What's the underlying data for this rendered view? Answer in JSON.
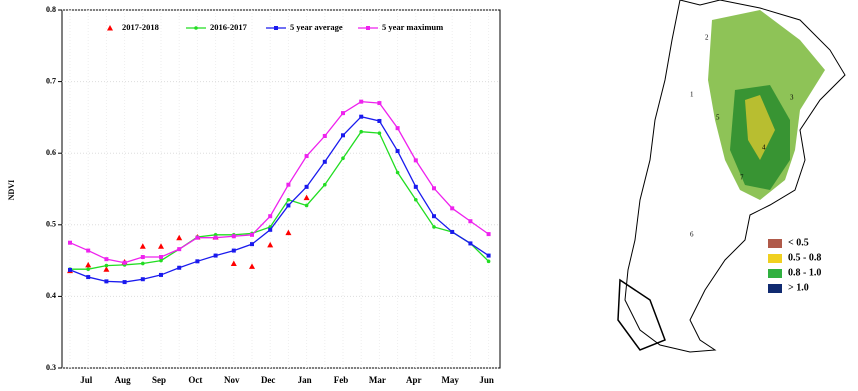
{
  "chart_data": {
    "type": "line",
    "y_label": "NDVI",
    "categories": [
      null,
      "Jul",
      null,
      "Aug",
      null,
      "Sep",
      null,
      "Oct",
      null,
      "Nov",
      null,
      "Dec",
      null,
      "Jan",
      null,
      "Feb",
      null,
      "Mar",
      null,
      "Apr",
      null,
      "May",
      null,
      "Jun"
    ],
    "ylim": [
      0.3,
      0.8
    ],
    "yticks": [
      0.3,
      0.4,
      0.5,
      0.6,
      0.7,
      0.8
    ],
    "grid": true,
    "series": [
      {
        "name": "2017-2018",
        "color": "#ff0000",
        "marker": "triangle",
        "line": false,
        "values": [
          0.436,
          0.444,
          0.438,
          0.448,
          0.47,
          0.47,
          0.482,
          0.483,
          0.483,
          0.446,
          0.442,
          0.472,
          0.489,
          0.538,
          null,
          null,
          null,
          null,
          null,
          null,
          null,
          null,
          null,
          null
        ]
      },
      {
        "name": "2016-2017",
        "color": "#22dd22",
        "marker": "circle",
        "line": true,
        "values": [
          0.438,
          0.438,
          0.443,
          0.444,
          0.446,
          0.45,
          0.466,
          0.483,
          0.486,
          0.486,
          0.488,
          0.497,
          0.535,
          0.527,
          0.556,
          0.593,
          0.63,
          0.628,
          0.573,
          0.535,
          0.497,
          0.49,
          0.474,
          0.449
        ]
      },
      {
        "name": "5 year average",
        "color": "#1a1aee",
        "marker": "square",
        "line": true,
        "values": [
          0.437,
          0.427,
          0.421,
          0.42,
          0.424,
          0.43,
          0.44,
          0.449,
          0.457,
          0.464,
          0.473,
          0.493,
          0.527,
          0.553,
          0.588,
          0.625,
          0.651,
          0.645,
          0.603,
          0.553,
          0.512,
          0.49,
          0.474,
          0.457
        ]
      },
      {
        "name": "5 year maximum",
        "color": "#ee22ee",
        "marker": "square",
        "line": true,
        "values": [
          0.475,
          0.464,
          0.452,
          0.447,
          0.455,
          0.455,
          0.466,
          0.482,
          0.482,
          0.484,
          0.486,
          0.512,
          0.556,
          0.596,
          0.624,
          0.656,
          0.672,
          0.67,
          0.635,
          0.59,
          0.551,
          0.523,
          0.505,
          0.487
        ]
      }
    ]
  },
  "map": {
    "legend": [
      {
        "label": "< 0.5",
        "color": "#b05a4a"
      },
      {
        "label": "0.5 - 0.8",
        "color": "#f0d020"
      },
      {
        "label": "0.8 - 1.0",
        "color": "#30b040"
      },
      {
        "label": "> 1.0",
        "color": "#102a70"
      }
    ],
    "region_labels": [
      "1",
      "2",
      "3",
      "4",
      "5",
      "6",
      "7"
    ]
  }
}
